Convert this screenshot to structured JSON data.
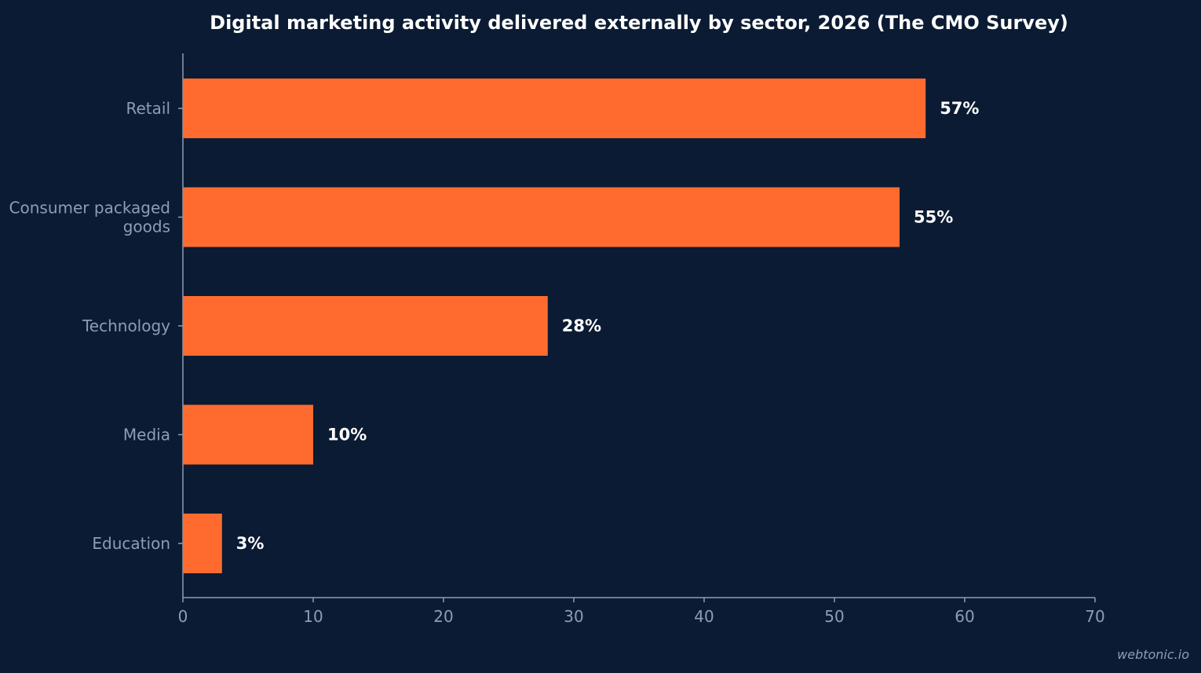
{
  "chart_data": {
    "type": "bar",
    "orientation": "horizontal",
    "title": "Digital marketing activity delivered externally by sector, 2026 (The CMO Survey)",
    "categories": [
      "Retail",
      "Consumer packaged goods",
      "Technology",
      "Media",
      "Education"
    ],
    "category_lines": [
      [
        "Retail"
      ],
      [
        "Consumer packaged",
        "goods"
      ],
      [
        "Technology"
      ],
      [
        "Media"
      ],
      [
        "Education"
      ]
    ],
    "values": [
      57,
      55,
      28,
      10,
      3
    ],
    "value_labels": [
      "57%",
      "55%",
      "28%",
      "10%",
      "3%"
    ],
    "xlim": [
      0,
      70
    ],
    "xticks": [
      0,
      10,
      20,
      30,
      40,
      50,
      60,
      70
    ],
    "xlabel": "",
    "ylabel": "",
    "grid": false,
    "colors": {
      "background": "#0b1b33",
      "bar": "#ff6b2f",
      "axis": "#8e9db4",
      "tick_text": "#8e9db4",
      "title_text": "#ffffff",
      "value_text": "#ffffff"
    }
  },
  "watermark": "webtonic.io"
}
